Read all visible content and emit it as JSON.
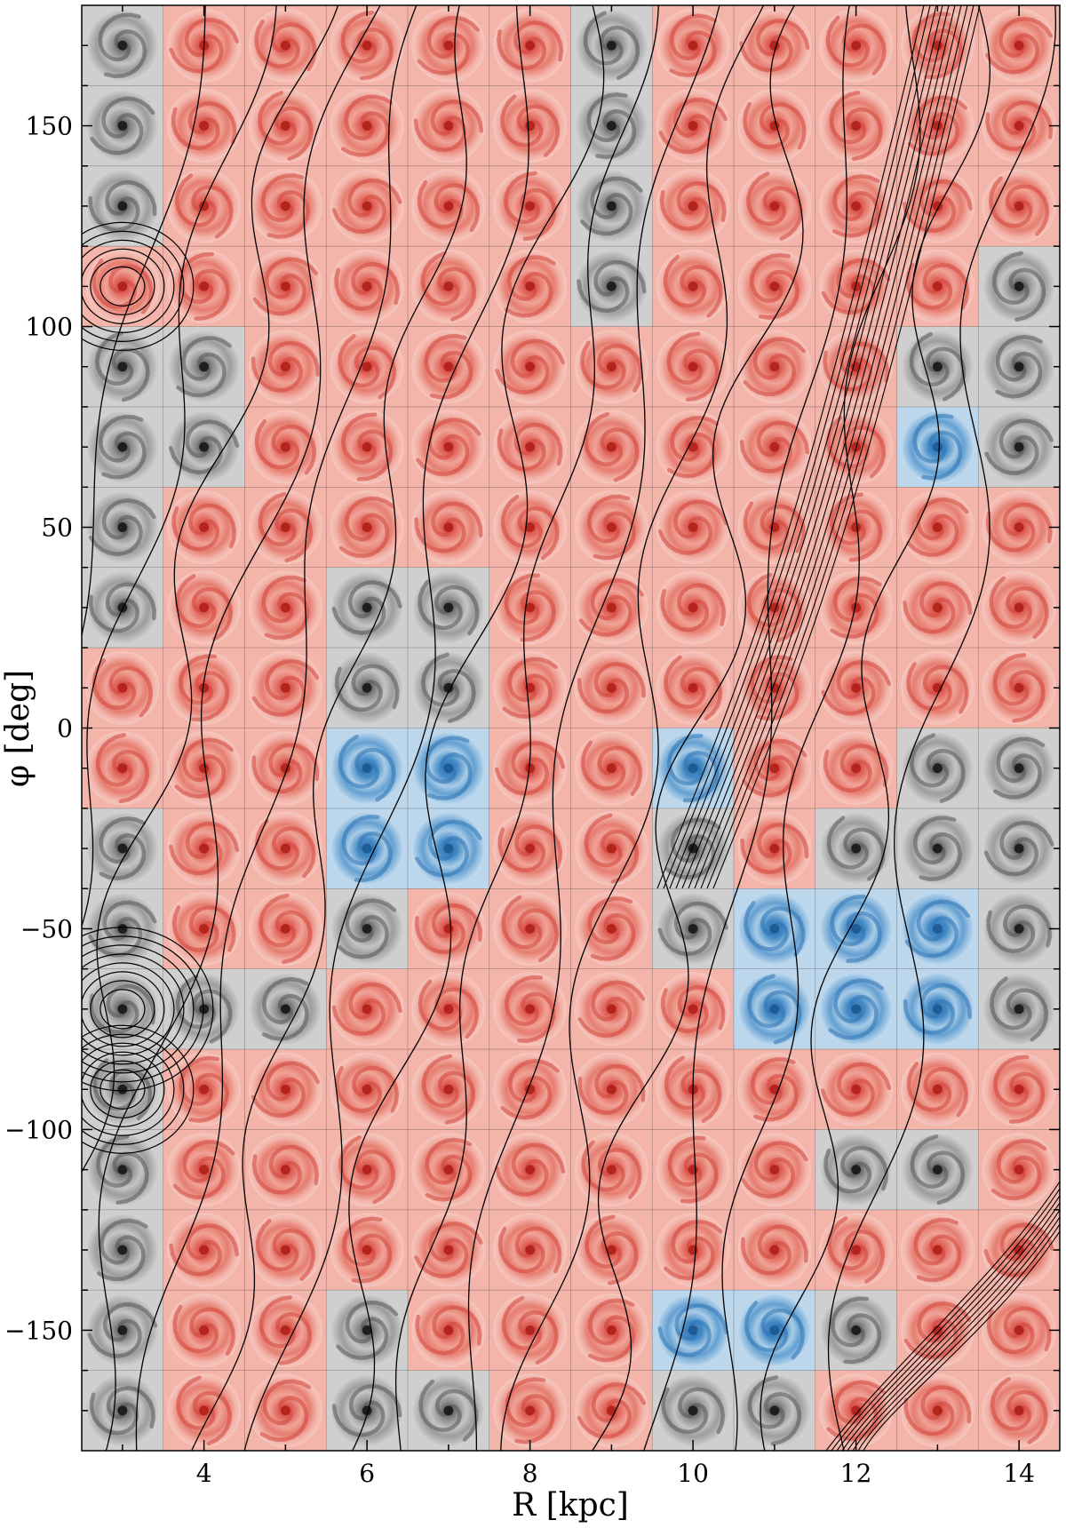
{
  "chart_data": {
    "type": "heatmap",
    "title": "",
    "xlabel": "R [kpc]",
    "ylabel": "φ [deg]",
    "xlim": [
      2.5,
      14.5
    ],
    "ylim": [
      -180,
      180
    ],
    "grid": true,
    "x_tick_values": [
      4,
      6,
      8,
      10,
      12,
      14
    ],
    "x_tick_labels": [
      "4",
      "6",
      "8",
      "10",
      "12",
      "14"
    ],
    "y_tick_values": [
      150,
      100,
      50,
      0,
      -50,
      -100,
      -150
    ],
    "y_tick_labels": [
      "150",
      "100",
      "50",
      "0",
      "−50",
      "−100",
      "−150"
    ],
    "cell_R_centers": [
      3,
      4,
      5,
      6,
      7,
      8,
      9,
      10,
      11,
      12,
      13,
      14
    ],
    "cell_phi_centers": [
      170,
      150,
      130,
      110,
      90,
      70,
      50,
      30,
      10,
      -10,
      -30,
      -50,
      -70,
      -90,
      -110,
      -130,
      -150,
      -170
    ],
    "cell_width_kpc": 1,
    "cell_height_deg": 20,
    "category_colors": {
      "red": "#e0645a",
      "gray": "#8a8a8a",
      "blue": "#3d86c4"
    },
    "cells": [
      "GRRRRRGRRRRR",
      "GRRRRRGRRRRR",
      "GRRRRRGRRRRR",
      "RRRRRRGRRRRG",
      "GGRRRRRRRRGG",
      "GGRRRRRRRRBG",
      "GRRRRRRRRRRR",
      "GRRGGRRRRRRR",
      "RRRGGRRRRRRR",
      "RRRBBRRBRRGG",
      "GRRBBRRGRGGG",
      "GRRGRRRGBBBG",
      "GGGRRRRRBBBG",
      "GRRRRRRRRRRR",
      "GRRRRRRRRGGR",
      "GRRRRRRRRRRR",
      "GRRGRRRBBGRR",
      "GRRGGRRGGRRR"
    ]
  }
}
